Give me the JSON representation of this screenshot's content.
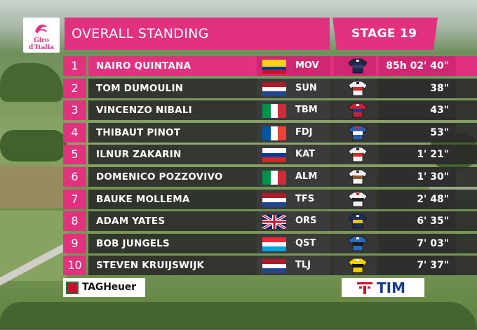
{
  "brand": {
    "logo_text": "Giro d'Italia",
    "accent": "#e2317e"
  },
  "header": {
    "title": "OVERALL STANDING",
    "stage": "STAGE 19"
  },
  "standings": [
    {
      "pos": "1",
      "name": "NAIRO QUINTANA",
      "team": "MOV",
      "flag": "colombia",
      "jersey": "dark-blue-M",
      "time": "85h 02' 40\""
    },
    {
      "pos": "2",
      "name": "TOM DUMOULIN",
      "team": "SUN",
      "flag": "netherlands",
      "jersey": "white-red",
      "time": "38\""
    },
    {
      "pos": "3",
      "name": "VINCENZO NIBALI",
      "team": "TBM",
      "flag": "italy",
      "jersey": "red-blue",
      "time": "43\""
    },
    {
      "pos": "4",
      "name": "THIBAUT PINOT",
      "team": "FDJ",
      "flag": "france",
      "jersey": "blue-white-red",
      "time": "53\""
    },
    {
      "pos": "5",
      "name": "ILNUR ZAKARIN",
      "team": "KAT",
      "flag": "russia",
      "jersey": "white-red",
      "time": "1' 21\""
    },
    {
      "pos": "6",
      "name": "DOMENICO POZZOVIVO",
      "team": "ALM",
      "flag": "italy",
      "jersey": "white-brown",
      "time": "1' 30\""
    },
    {
      "pos": "7",
      "name": "BAUKE MOLLEMA",
      "team": "TFS",
      "flag": "netherlands",
      "jersey": "white-black-red",
      "time": "2' 48\""
    },
    {
      "pos": "8",
      "name": "ADAM YATES",
      "team": "ORS",
      "flag": "uk",
      "jersey": "navy-yellow",
      "time": "6' 35\""
    },
    {
      "pos": "9",
      "name": "BOB JUNGELS",
      "team": "QST",
      "flag": "luxembourg",
      "jersey": "blue-black",
      "time": "7' 03\""
    },
    {
      "pos": "10",
      "name": "STEVEN KRUIJSWIJK",
      "team": "TLJ",
      "flag": "netherlands",
      "jersey": "yellow-black",
      "time": "7' 37\""
    }
  ],
  "sponsors": {
    "left": "TAGHeuer",
    "left_badge": "TAG",
    "right": "TIM"
  }
}
